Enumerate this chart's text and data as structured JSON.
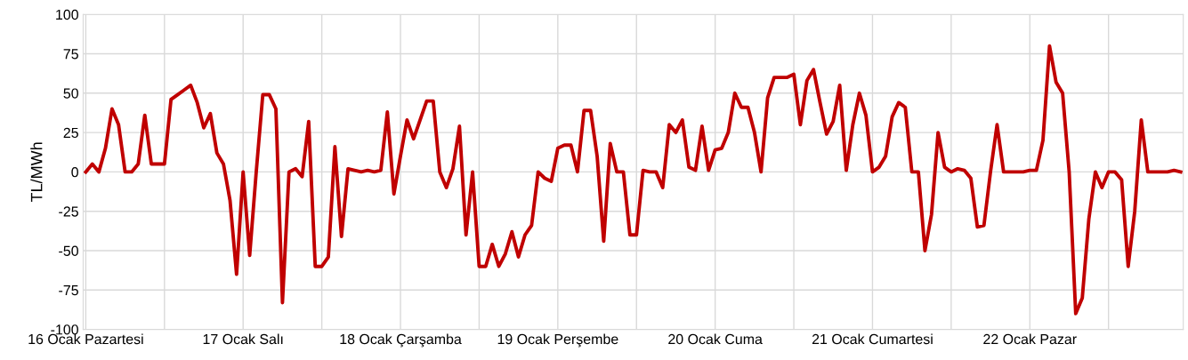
{
  "chart_data": {
    "type": "line",
    "ylabel": "TL/MWh",
    "categories": [
      "16 Ocak Pazartesi",
      null,
      null,
      null,
      null,
      null,
      null,
      null,
      null,
      null,
      null,
      null,
      null,
      null,
      null,
      null,
      null,
      null,
      null,
      null,
      null,
      null,
      null,
      null,
      "17 Ocak Salı",
      null,
      null,
      null,
      null,
      null,
      null,
      null,
      null,
      null,
      null,
      null,
      null,
      null,
      null,
      null,
      null,
      null,
      null,
      null,
      null,
      null,
      null,
      null,
      "18 Ocak Çarşamba",
      null,
      null,
      null,
      null,
      null,
      null,
      null,
      null,
      null,
      null,
      null,
      null,
      null,
      null,
      null,
      null,
      null,
      null,
      null,
      null,
      null,
      null,
      null,
      "19 Ocak Perşembe",
      null,
      null,
      null,
      null,
      null,
      null,
      null,
      null,
      null,
      null,
      null,
      null,
      null,
      null,
      null,
      null,
      null,
      null,
      null,
      null,
      null,
      null,
      null,
      "20 Ocak Cuma",
      null,
      null,
      null,
      null,
      null,
      null,
      null,
      null,
      null,
      null,
      null,
      null,
      null,
      null,
      null,
      null,
      null,
      null,
      null,
      null,
      null,
      null,
      null,
      "21 Ocak Cumartesi",
      null,
      null,
      null,
      null,
      null,
      null,
      null,
      null,
      null,
      null,
      null,
      null,
      null,
      null,
      null,
      null,
      null,
      null,
      null,
      null,
      null,
      null,
      null,
      "22 Ocak Pazar",
      null,
      null,
      null,
      null,
      null,
      null,
      null,
      null,
      null,
      null,
      null,
      null,
      null,
      null,
      null,
      null,
      null,
      null,
      null,
      null,
      null,
      null,
      null
    ],
    "series": [
      {
        "color": "#c00000",
        "values": [
          0,
          5,
          0,
          15,
          40,
          30,
          0,
          0,
          5,
          36,
          5,
          5,
          5,
          46,
          49,
          52,
          55,
          44,
          28,
          37,
          12,
          5,
          -18,
          -65,
          0,
          -53,
          0,
          49,
          49,
          40,
          -83,
          0,
          2,
          -3,
          32,
          -60,
          -60,
          -54,
          16,
          -41,
          2,
          1,
          0,
          1,
          0,
          1,
          38,
          -14,
          10,
          33,
          21,
          33,
          45,
          45,
          0,
          -10,
          2,
          29,
          -40,
          0,
          -60,
          -60,
          -46,
          -60,
          -52,
          -38,
          -54,
          -40,
          -34,
          0,
          -4,
          -6,
          15,
          17,
          17,
          0,
          39,
          39,
          10,
          -44,
          18,
          0,
          0,
          -40,
          -40,
          1,
          0,
          0,
          -10,
          30,
          25,
          33,
          3,
          1,
          29,
          1,
          14,
          15,
          25,
          50,
          41,
          41,
          25,
          0,
          47,
          60,
          60,
          60,
          62,
          30,
          58,
          65,
          44,
          24,
          32,
          55,
          1,
          30,
          50,
          36,
          0,
          3,
          10,
          35,
          44,
          41,
          0,
          0,
          -50,
          -27,
          25,
          3,
          0,
          2,
          1,
          -4,
          -35,
          -34,
          0,
          30,
          0,
          0,
          0,
          0,
          1,
          1,
          20,
          80,
          57,
          50,
          0,
          -90,
          -80,
          -30,
          0,
          -10,
          0,
          0,
          -5,
          -60,
          -25,
          33,
          0,
          0,
          0,
          0,
          1,
          0
        ]
      }
    ],
    "ylim": [
      -100,
      100
    ],
    "yticks": [
      -100,
      -75,
      -50,
      -25,
      0,
      25,
      50,
      75,
      100
    ],
    "grid": true,
    "legend": false,
    "marker": "none",
    "line_style": "solid"
  }
}
